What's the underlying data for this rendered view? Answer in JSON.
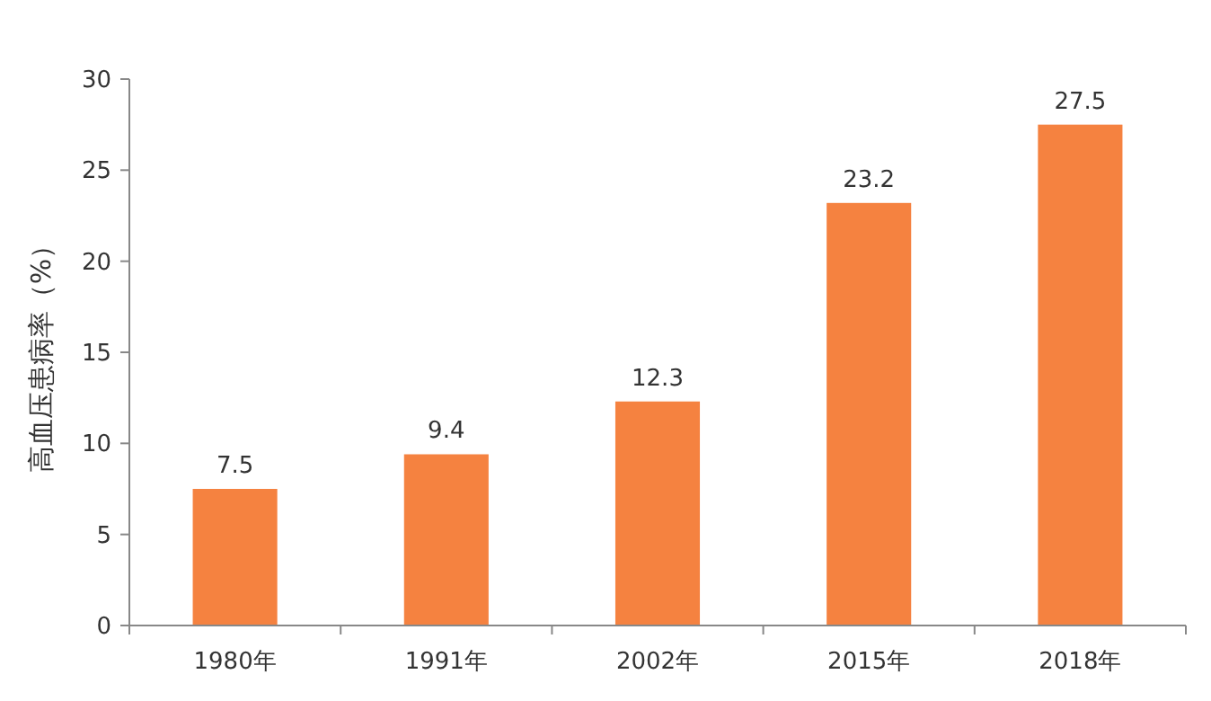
{
  "chart_data": {
    "type": "bar",
    "ylabel": "高血压患病率（%）",
    "categories": [
      "1980年",
      "1991年",
      "2002年",
      "2015年",
      "2018年"
    ],
    "values": [
      7.5,
      9.4,
      12.3,
      23.2,
      27.5
    ],
    "color": "#f58240",
    "ylim": [
      0,
      30
    ],
    "yticks": [
      0,
      5,
      10,
      15,
      20,
      25,
      30
    ],
    "grid": false,
    "data_labels": true
  }
}
